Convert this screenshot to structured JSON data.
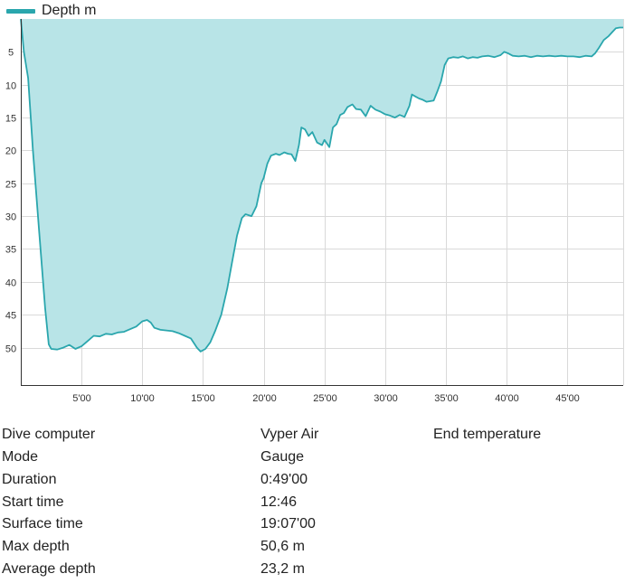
{
  "chart_data": {
    "type": "area",
    "legend": [
      {
        "name": "Depth m",
        "color": "#2aa6ad"
      }
    ],
    "series": [
      {
        "name": "Depth m",
        "color": "#2aa6ad",
        "fill": "#b8e4e7"
      }
    ],
    "xlabel": "",
    "ylabel": "",
    "x_unit": "minutes",
    "xlim": [
      0,
      49.6
    ],
    "ylim": [
      0,
      55.7
    ],
    "y_inverted": true,
    "grid": true,
    "legend_position": "top-left",
    "x_ticks": [
      {
        "value": 5,
        "label": "5'00"
      },
      {
        "value": 10,
        "label": "10'00"
      },
      {
        "value": 15,
        "label": "15'00"
      },
      {
        "value": 20,
        "label": "20'00"
      },
      {
        "value": 25,
        "label": "25'00"
      },
      {
        "value": 30,
        "label": "30'00"
      },
      {
        "value": 35,
        "label": "35'00"
      },
      {
        "value": 40,
        "label": "40'00"
      },
      {
        "value": 45,
        "label": "45'00"
      }
    ],
    "y_ticks": [
      {
        "value": 5,
        "label": "5"
      },
      {
        "value": 10,
        "label": "10"
      },
      {
        "value": 15,
        "label": "15"
      },
      {
        "value": 20,
        "label": "20"
      },
      {
        "value": 25,
        "label": "25"
      },
      {
        "value": 30,
        "label": "30"
      },
      {
        "value": 35,
        "label": "35"
      },
      {
        "value": 40,
        "label": "40"
      },
      {
        "value": 45,
        "label": "45"
      },
      {
        "value": 50,
        "label": "50"
      }
    ],
    "points": [
      [
        0,
        0
      ],
      [
        0.25,
        5
      ],
      [
        0.6,
        9
      ],
      [
        1,
        20
      ],
      [
        1.5,
        32
      ],
      [
        2,
        44
      ],
      [
        2.3,
        49.5
      ],
      [
        2.5,
        50.2
      ],
      [
        3,
        50.3
      ],
      [
        3.5,
        50
      ],
      [
        4,
        49.6
      ],
      [
        4.5,
        50.2
      ],
      [
        5,
        49.8
      ],
      [
        5.5,
        49
      ],
      [
        6,
        48.2
      ],
      [
        6.5,
        48.3
      ],
      [
        7,
        47.9
      ],
      [
        7.5,
        48
      ],
      [
        8,
        47.7
      ],
      [
        8.5,
        47.6
      ],
      [
        9,
        47.2
      ],
      [
        9.5,
        46.8
      ],
      [
        10,
        46
      ],
      [
        10.4,
        45.8
      ],
      [
        10.7,
        46.2
      ],
      [
        11,
        47
      ],
      [
        11.5,
        47.3
      ],
      [
        12,
        47.4
      ],
      [
        12.5,
        47.5
      ],
      [
        13,
        47.8
      ],
      [
        13.5,
        48.2
      ],
      [
        14,
        48.6
      ],
      [
        14.5,
        50
      ],
      [
        14.8,
        50.6
      ],
      [
        15.2,
        50.2
      ],
      [
        15.6,
        49.2
      ],
      [
        16,
        47.5
      ],
      [
        16.5,
        45
      ],
      [
        17,
        41
      ],
      [
        17.4,
        37
      ],
      [
        17.8,
        33
      ],
      [
        18.2,
        30.3
      ],
      [
        18.5,
        29.7
      ],
      [
        19,
        30
      ],
      [
        19.4,
        28.5
      ],
      [
        19.8,
        25
      ],
      [
        20,
        24.2
      ],
      [
        20.3,
        22
      ],
      [
        20.6,
        20.8
      ],
      [
        21,
        20.5
      ],
      [
        21.3,
        20.7
      ],
      [
        21.7,
        20.3
      ],
      [
        22,
        20.5
      ],
      [
        22.3,
        20.6
      ],
      [
        22.6,
        21.6
      ],
      [
        22.9,
        19.2
      ],
      [
        23.1,
        16.5
      ],
      [
        23.4,
        16.8
      ],
      [
        23.7,
        17.8
      ],
      [
        24,
        17.2
      ],
      [
        24.4,
        18.8
      ],
      [
        24.8,
        19.2
      ],
      [
        25,
        18.4
      ],
      [
        25.4,
        19.5
      ],
      [
        25.7,
        16.5
      ],
      [
        26,
        16
      ],
      [
        26.3,
        14.6
      ],
      [
        26.6,
        14.3
      ],
      [
        26.9,
        13.4
      ],
      [
        27.3,
        13
      ],
      [
        27.6,
        13.7
      ],
      [
        28,
        13.8
      ],
      [
        28.4,
        14.8
      ],
      [
        28.8,
        13.2
      ],
      [
        29.2,
        13.8
      ],
      [
        29.6,
        14.1
      ],
      [
        30,
        14.5
      ],
      [
        30.4,
        14.7
      ],
      [
        30.8,
        15
      ],
      [
        31.2,
        14.6
      ],
      [
        31.6,
        14.9
      ],
      [
        32,
        13.2
      ],
      [
        32.2,
        11.5
      ],
      [
        32.5,
        11.8
      ],
      [
        32.8,
        12.1
      ],
      [
        33.1,
        12.3
      ],
      [
        33.4,
        12.6
      ],
      [
        34,
        12.4
      ],
      [
        34.3,
        11
      ],
      [
        34.6,
        9.5
      ],
      [
        34.9,
        7
      ],
      [
        35.2,
        6
      ],
      [
        35.6,
        5.8
      ],
      [
        36,
        5.9
      ],
      [
        36.4,
        5.7
      ],
      [
        36.8,
        6
      ],
      [
        37.2,
        5.8
      ],
      [
        37.6,
        5.9
      ],
      [
        38,
        5.7
      ],
      [
        38.5,
        5.6
      ],
      [
        39,
        5.8
      ],
      [
        39.5,
        5.5
      ],
      [
        39.8,
        5
      ],
      [
        40.1,
        5.2
      ],
      [
        40.5,
        5.6
      ],
      [
        41,
        5.7
      ],
      [
        41.5,
        5.6
      ],
      [
        42,
        5.8
      ],
      [
        42.5,
        5.6
      ],
      [
        43,
        5.7
      ],
      [
        43.5,
        5.6
      ],
      [
        44,
        5.7
      ],
      [
        44.5,
        5.6
      ],
      [
        45,
        5.7
      ],
      [
        45.5,
        5.7
      ],
      [
        46,
        5.8
      ],
      [
        46.5,
        5.6
      ],
      [
        47,
        5.7
      ],
      [
        47.3,
        5.2
      ],
      [
        47.6,
        4.4
      ],
      [
        48,
        3.2
      ],
      [
        48.4,
        2.6
      ],
      [
        48.7,
        2
      ],
      [
        49,
        1.4
      ],
      [
        49.3,
        1.3
      ],
      [
        49.6,
        1.3
      ]
    ]
  },
  "details": [
    {
      "key": "Dive computer",
      "value": "Vyper Air",
      "extra": "End temperature"
    },
    {
      "key": "Mode",
      "value": "Gauge"
    },
    {
      "key": "Duration",
      "value": "0:49'00"
    },
    {
      "key": "Start time",
      "value": "12:46"
    },
    {
      "key": "Surface time",
      "value": "19:07'00"
    },
    {
      "key": "Max depth",
      "value": "50,6 m"
    },
    {
      "key": "Average depth",
      "value": "23,2 m"
    }
  ]
}
